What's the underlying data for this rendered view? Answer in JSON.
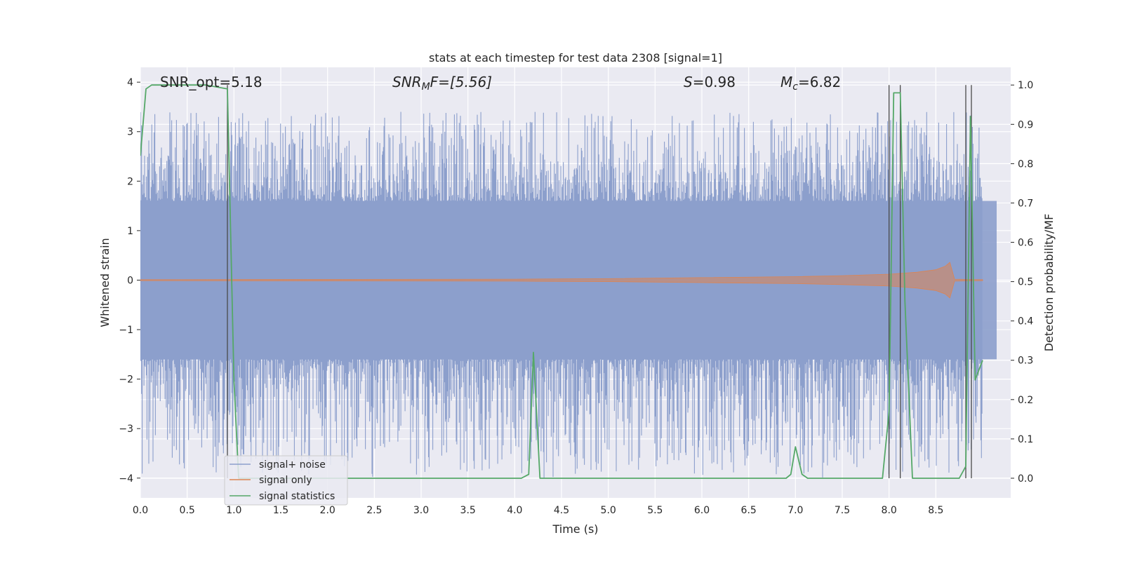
{
  "chart_data": {
    "type": "line",
    "title": "stats at each timestep for test data 2308 [signal=1]",
    "xlabel": "Time (s)",
    "ylabel": "Whitened strain",
    "y2label": "Detection probability/MF",
    "xlim": [
      0,
      9.0
    ],
    "ylim": [
      -4.4,
      4.3
    ],
    "y2lim": [
      -0.05,
      1.045
    ],
    "x_ticks": [
      "0.0",
      "0.5",
      "1.0",
      "1.5",
      "2.0",
      "2.5",
      "3.0",
      "3.5",
      "4.0",
      "4.5",
      "5.0",
      "5.5",
      "6.0",
      "6.5",
      "7.0",
      "7.5",
      "8.0",
      "8.5"
    ],
    "y_ticks": [
      "4",
      "3",
      "2",
      "1",
      "0",
      "−1",
      "−2",
      "−3",
      "−4"
    ],
    "y2_ticks": [
      "1.0",
      "0.9",
      "0.8",
      "0.7",
      "0.6",
      "0.5",
      "0.4",
      "0.3",
      "0.2",
      "0.1",
      "0.0"
    ],
    "grid": true,
    "legend_position": "lower-left",
    "annotations": {
      "snr_opt": "SNR_opt=5.18",
      "snr_mf_base": "SNR",
      "snr_mf_sub": "M",
      "snr_mf_rest": "F=[5.56]",
      "s_base": "S",
      "s_rest": "=0.98",
      "mc_base": "M",
      "mc_sub": "c",
      "mc_rest": "=6.82"
    },
    "series": [
      {
        "name": "signal+ noise",
        "color": "#8c9fcc",
        "noise_band": 1.6,
        "noise_peak": 3.4,
        "noise_trough": -4.0
      },
      {
        "name": "signal only",
        "color": "#dd8452",
        "x": [
          0,
          4.0,
          5.0,
          6.0,
          7.0,
          7.5,
          8.0,
          8.3,
          8.5,
          8.6,
          8.65,
          8.7,
          9.0
        ],
        "envelope": [
          0.01,
          0.02,
          0.03,
          0.05,
          0.07,
          0.09,
          0.12,
          0.16,
          0.21,
          0.28,
          0.36,
          0.02,
          0.01
        ]
      },
      {
        "name": "signal statistics",
        "color": "#55a868",
        "x": [
          0.0,
          0.06,
          0.12,
          0.3,
          0.5,
          0.7,
          0.93,
          1.0,
          1.05,
          1.1,
          4.07,
          4.15,
          4.2,
          4.27,
          6.9,
          6.95,
          7.0,
          7.07,
          7.13,
          7.93,
          8.0,
          8.05,
          8.1,
          8.12,
          8.17,
          8.25,
          8.75,
          8.82,
          8.87,
          8.92,
          9.0
        ],
        "values": [
          0.82,
          0.99,
          1.0,
          1.0,
          1.0,
          1.0,
          0.99,
          0.25,
          0.0,
          0.0,
          0.0,
          0.01,
          0.32,
          0.0,
          0.0,
          0.01,
          0.08,
          0.01,
          0.0,
          0.0,
          0.17,
          0.98,
          0.98,
          0.98,
          0.45,
          0.0,
          0.0,
          0.03,
          0.92,
          0.25,
          0.3
        ]
      }
    ],
    "vertical_markers": [
      0.93,
      8.0,
      8.12,
      8.82,
      8.88
    ]
  }
}
